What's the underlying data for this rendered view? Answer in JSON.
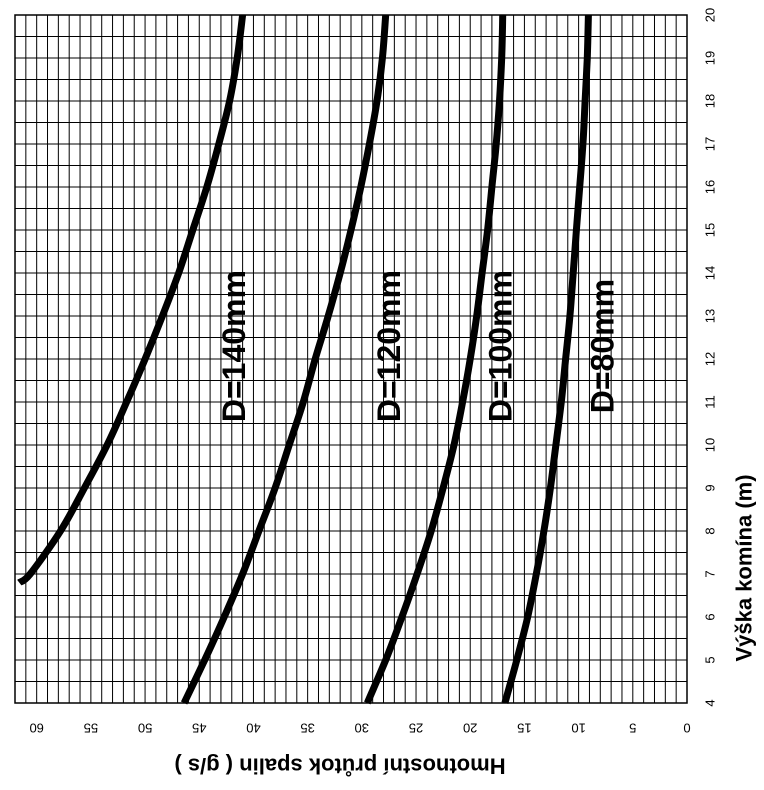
{
  "chart_data": {
    "type": "line",
    "orientation": "rotated-90",
    "xlabel": "Výška komína  (m)",
    "ylabel": "Hmotnostní průtok spalin  ( g/s )",
    "xlim": [
      4,
      20
    ],
    "ylim": [
      0,
      62
    ],
    "x_ticks": [
      4,
      5,
      6,
      7,
      8,
      9,
      10,
      11,
      12,
      13,
      14,
      15,
      16,
      17,
      18,
      19,
      20
    ],
    "y_ticks": [
      0,
      5,
      10,
      15,
      20,
      25,
      30,
      35,
      40,
      45,
      50,
      55,
      60
    ],
    "grid": true,
    "series": [
      {
        "name": "D=140mm",
        "x": [
          6.8,
          7,
          8,
          9,
          10,
          11,
          12,
          13,
          14,
          15,
          16,
          17,
          18,
          19,
          20
        ],
        "y": [
          61.6,
          60.6,
          57.8,
          55.6,
          53.5,
          51.7,
          50.0,
          48.4,
          46.9,
          45.6,
          44.3,
          43.2,
          42.2,
          41.5,
          41.0
        ]
      },
      {
        "name": "D=120mm",
        "x": [
          4,
          5,
          6,
          7,
          8,
          9,
          10,
          11,
          12,
          13,
          14,
          15,
          16,
          17,
          18,
          19,
          20
        ],
        "y": [
          46.4,
          44.5,
          42.7,
          41.0,
          39.5,
          38.0,
          36.7,
          35.4,
          34.3,
          33.1,
          32.0,
          31.0,
          30.1,
          29.3,
          28.6,
          28.1,
          27.8
        ]
      },
      {
        "name": "D=100mm",
        "x": [
          4,
          5,
          6,
          7,
          8,
          9,
          10,
          11,
          12,
          13,
          14,
          15,
          16,
          17,
          18,
          19,
          20
        ],
        "y": [
          29.5,
          27.8,
          26.3,
          24.9,
          23.6,
          22.5,
          21.5,
          20.7,
          20.0,
          19.4,
          18.9,
          18.4,
          18.0,
          17.6,
          17.3,
          17.1,
          17.0
        ]
      },
      {
        "name": "D=80mm",
        "x": [
          4,
          5,
          6,
          7,
          8,
          9,
          10,
          11,
          12,
          13,
          14,
          15,
          16,
          17,
          18,
          19,
          20
        ],
        "y": [
          16.8,
          15.7,
          14.7,
          13.9,
          13.2,
          12.6,
          12.1,
          11.6,
          11.2,
          10.8,
          10.5,
          10.2,
          9.9,
          9.6,
          9.4,
          9.2,
          9.1
        ]
      }
    ],
    "line_color": "#000000",
    "grid_color": "#000000",
    "background": "#ffffff"
  }
}
